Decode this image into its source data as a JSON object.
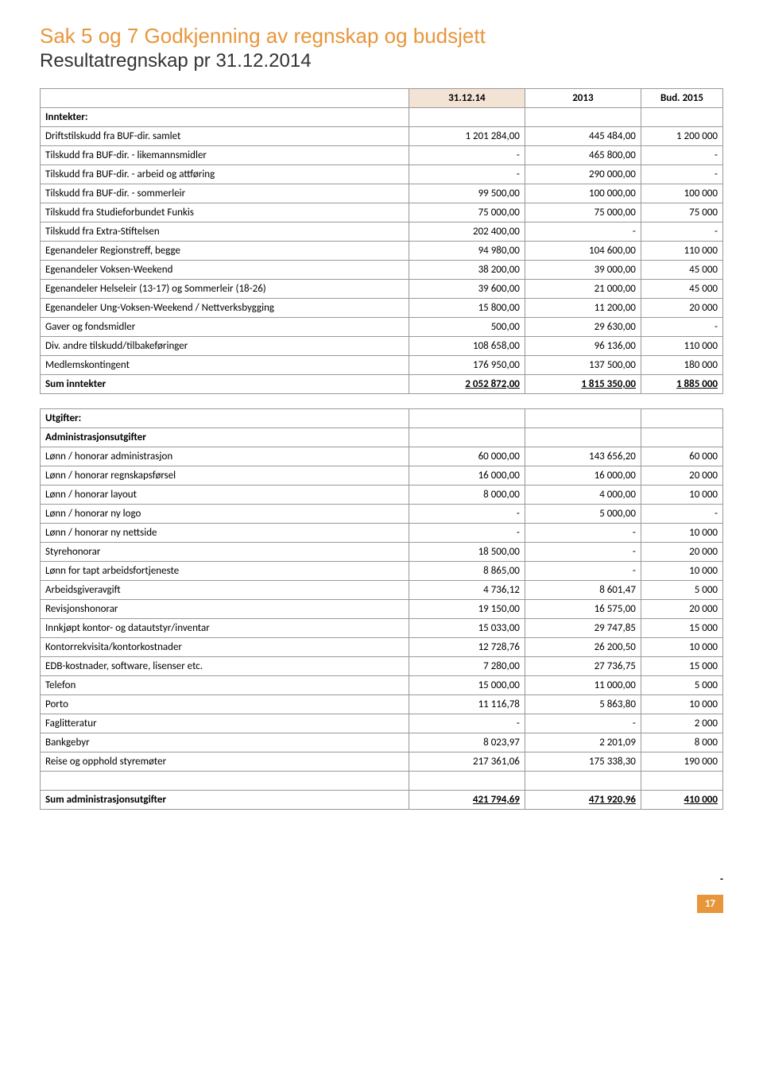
{
  "title": "Sak 5 og 7 Godkjenning av regnskap og budsjett",
  "subtitle": "Resultatregnskap pr 31.12.2014",
  "headers": {
    "c1": "31.12.14",
    "c2": "2013",
    "c3": "Bud. 2015"
  },
  "income": {
    "section": "Inntekter:",
    "rows": [
      {
        "label": "Driftstilskudd fra BUF-dir. samlet",
        "a": "1 201 284,00",
        "b": "445 484,00",
        "c": "1 200 000"
      },
      {
        "label": "Tilskudd fra BUF-dir. - likemannsmidler",
        "a": "-",
        "b": "465 800,00",
        "c": "-"
      },
      {
        "label": "Tilskudd fra BUF-dir. - arbeid og attføring",
        "a": "-",
        "b": "290 000,00",
        "c": "-"
      },
      {
        "label": "Tilskudd fra BUF-dir. -  sommerleir",
        "a": "99 500,00",
        "b": "100 000,00",
        "c": "100 000"
      },
      {
        "label": "Tilskudd fra Studieforbundet Funkis",
        "a": "75 000,00",
        "b": "75 000,00",
        "c": "75 000"
      },
      {
        "label": "Tilskudd fra Extra-Stiftelsen",
        "a": "202 400,00",
        "b": "-",
        "c": "-"
      },
      {
        "label": "Egenandeler Regionstreff, begge",
        "a": "94 980,00",
        "b": "104 600,00",
        "c": "110 000"
      },
      {
        "label": "Egenandeler Voksen-Weekend",
        "a": "38 200,00",
        "b": "39 000,00",
        "c": "45 000"
      },
      {
        "label": "Egenandeler Helseleir (13-17) og Sommerleir (18-26)",
        "a": "39 600,00",
        "b": "21 000,00",
        "c": "45 000"
      },
      {
        "label": "Egenandeler Ung-Voksen-Weekend / Nettverksbygging",
        "a": "15 800,00",
        "b": "11 200,00",
        "c": "20 000"
      },
      {
        "label": "Gaver og fondsmidler",
        "a": "500,00",
        "b": "29 630,00",
        "c": "-"
      },
      {
        "label": "Div. andre tilskudd/tilbakeføringer",
        "a": "108 658,00",
        "b": "96 136,00",
        "c": "110 000"
      },
      {
        "label": "Medlemskontingent",
        "a": "176 950,00",
        "b": "137 500,00",
        "c": "180 000"
      }
    ],
    "sum": {
      "label": "Sum inntekter",
      "a": "2 052 872,00",
      "b": "1 815 350,00",
      "c": "1 885 000"
    }
  },
  "expenses": {
    "section": "Utgifter:",
    "subheader": "Administrasjonsutgifter",
    "rows": [
      {
        "label": "Lønn / honorar administrasjon",
        "a": "60 000,00",
        "b": "143 656,20",
        "c": "60 000"
      },
      {
        "label": "Lønn / honorar regnskapsførsel",
        "a": "16 000,00",
        "b": "16 000,00",
        "c": "20 000"
      },
      {
        "label": "Lønn / honorar layout",
        "a": "8 000,00",
        "b": "4 000,00",
        "c": "10 000"
      },
      {
        "label": "Lønn / honorar ny logo",
        "a": "-",
        "b": "5 000,00",
        "c": "-"
      },
      {
        "label": "Lønn / honorar ny nettside",
        "a": "-",
        "b": "-",
        "c": "10 000"
      },
      {
        "label": "Styrehonorar",
        "a": "18 500,00",
        "b": "-",
        "c": "20 000"
      },
      {
        "label": "Lønn for tapt arbeidsfortjeneste",
        "a": "8 865,00",
        "b": "-",
        "c": "10 000"
      },
      {
        "label": "Arbeidsgiveravgift",
        "a": "4 736,12",
        "b": "8 601,47",
        "c": "5 000"
      },
      {
        "label": "Revisjonshonorar",
        "a": "19 150,00",
        "b": "16 575,00",
        "c": "20 000"
      },
      {
        "label": "Innkjøpt kontor- og datautstyr/inventar",
        "a": "15 033,00",
        "b": "29 747,85",
        "c": "15 000"
      },
      {
        "label": "Kontorrekvisita/kontorkostnader",
        "a": "12 728,76",
        "b": "26 200,50",
        "c": "10 000"
      },
      {
        "label": "EDB-kostnader, software, lisenser etc.",
        "a": "7 280,00",
        "b": "27 736,75",
        "c": "15 000"
      },
      {
        "label": "Telefon",
        "a": "15 000,00",
        "b": "11 000,00",
        "c": "5 000"
      },
      {
        "label": "Porto",
        "a": "11 116,78",
        "b": "5 863,80",
        "c": "10 000"
      },
      {
        "label": "Faglitteratur",
        "a": "-",
        "b": "-",
        "c": "2 000"
      },
      {
        "label": "Bankgebyr",
        "a": "8 023,97",
        "b": "2 201,09",
        "c": "8 000"
      },
      {
        "label": "Reise og opphold styremøter",
        "a": "217 361,06",
        "b": "175 338,30",
        "c": "190 000"
      }
    ],
    "sum": {
      "label": "Sum administrasjonsutgifter",
      "a": "421 794,69",
      "b": "471 920,96",
      "c": "410 000"
    }
  },
  "page": {
    "dash": "-",
    "number": "17"
  }
}
